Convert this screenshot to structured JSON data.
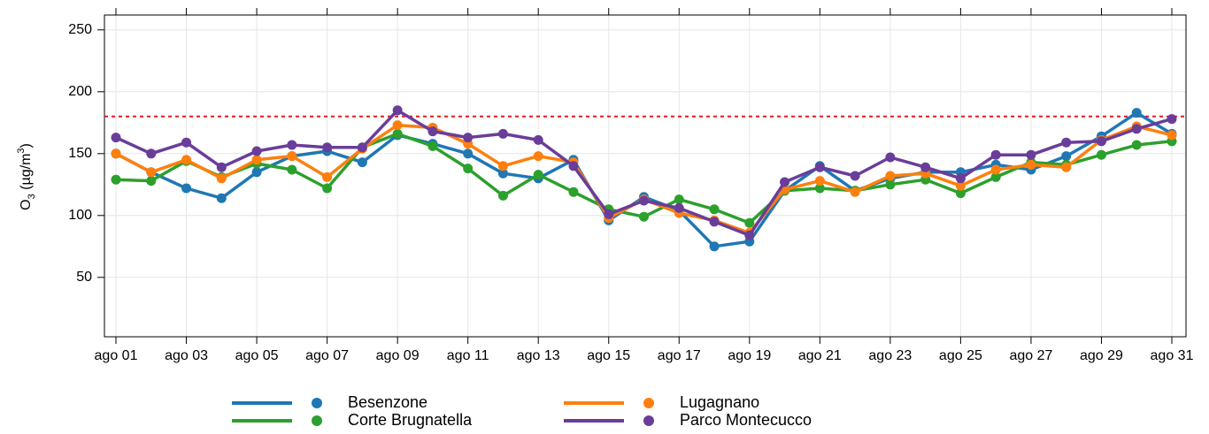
{
  "chart_data": {
    "type": "line",
    "ylabel": {
      "base": "O",
      "sub": "3",
      "mid": " (µg/m",
      "sup": "3",
      "end": ")"
    },
    "categories": [
      "ago 01",
      null,
      "ago 03",
      null,
      "ago 05",
      null,
      "ago 07",
      null,
      "ago 09",
      null,
      "ago 11",
      null,
      "ago 13",
      null,
      "ago 15",
      null,
      "ago 17",
      null,
      "ago 19",
      null,
      "ago 21",
      null,
      "ago 23",
      null,
      "ago 25",
      null,
      "ago 27",
      null,
      "ago 29",
      null,
      "ago 31"
    ],
    "series": [
      {
        "name": "Besenzone",
        "color": "#1f77b4",
        "values": [
          150,
          135,
          122,
          114,
          135,
          148,
          152,
          143,
          165,
          158,
          150,
          134,
          130,
          145,
          96,
          115,
          104,
          75,
          79,
          120,
          140,
          120,
          130,
          135,
          135,
          141,
          137,
          148,
          164,
          183,
          166
        ]
      },
      {
        "name": "Corte Brugnatella",
        "color": "#2ca02c",
        "values": [
          129,
          128,
          144,
          131,
          142,
          137,
          122,
          155,
          166,
          156,
          138,
          116,
          133,
          119,
          105,
          99,
          113,
          105,
          94,
          120,
          122,
          120,
          125,
          129,
          118,
          131,
          143,
          141,
          149,
          157,
          160
        ]
      },
      {
        "name": "Lugagnano",
        "color": "#ff7f0e",
        "values": [
          150,
          135,
          145,
          130,
          145,
          148,
          131,
          154,
          173,
          171,
          158,
          140,
          148,
          143,
          98,
          113,
          102,
          96,
          86,
          121,
          128,
          119,
          132,
          134,
          124,
          137,
          141,
          139,
          161,
          172,
          165
        ]
      },
      {
        "name": "Parco Montecucco",
        "color": "#6a3d9a",
        "values": [
          163,
          150,
          159,
          139,
          152,
          157,
          155,
          155,
          185,
          168,
          163,
          166,
          161,
          140,
          101,
          112,
          106,
          95,
          84,
          127,
          139,
          132,
          147,
          139,
          130,
          149,
          149,
          159,
          160,
          170,
          178
        ]
      }
    ],
    "threshold": 180,
    "threshold_color": "#e41a1c",
    "ylim": [
      2,
      262
    ],
    "yticks": [
      50,
      100,
      150,
      200,
      250
    ],
    "grid": true
  }
}
